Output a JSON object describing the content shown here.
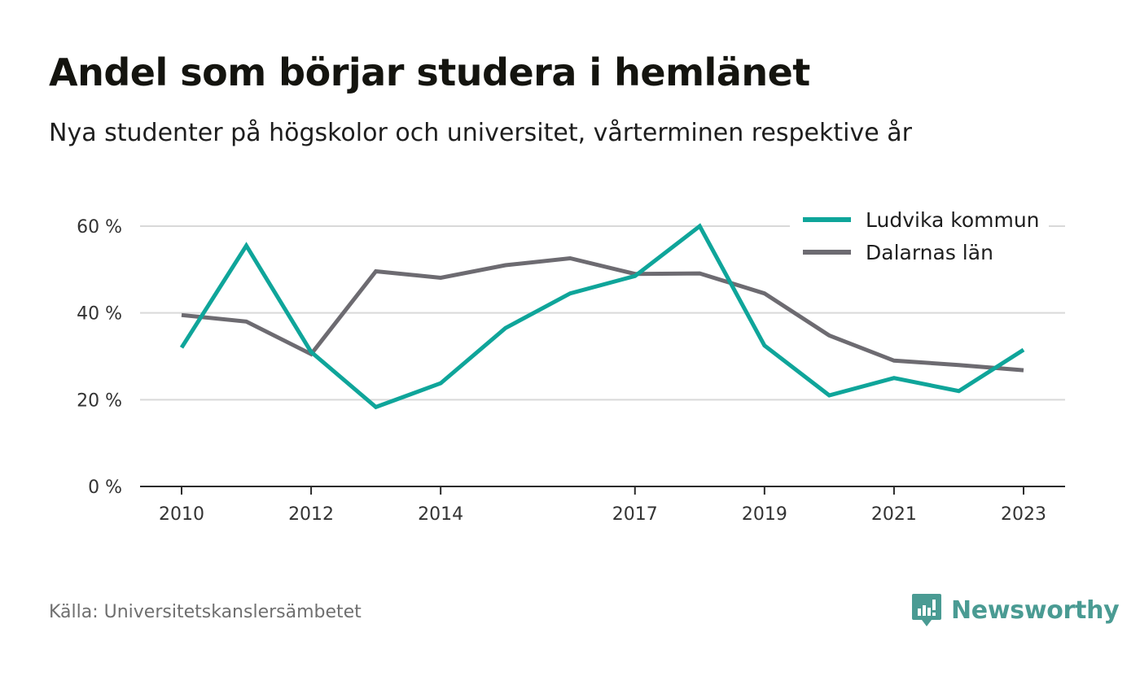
{
  "title": "Andel som börjar studera i hemlänet",
  "subtitle": "Nya studenter på högskolor och universitet, vårterminen respektive år",
  "source": "Källa: Universitetskanslersämbetet",
  "brand": {
    "name": "Newsworthy",
    "color": "#4a9b93",
    "icon": "newsworthy-logo-icon"
  },
  "chart_data": {
    "type": "line",
    "x": [
      2010,
      2011,
      2012,
      2013,
      2014,
      2015,
      2016,
      2017,
      2018,
      2019,
      2020,
      2021,
      2022,
      2023
    ],
    "x_tick_labels": [
      "2010",
      "2012",
      "2014",
      "2017",
      "2019",
      "2021",
      "2023"
    ],
    "y_tick_labels": [
      "0 %",
      "20 %",
      "40 %",
      "60 %"
    ],
    "y_ticks": [
      0,
      20,
      40,
      60
    ],
    "ylim": [
      0,
      60
    ],
    "grid": true,
    "legend_position": "top-right",
    "series": [
      {
        "name": "Ludvika kommun",
        "color": "#0fa59a",
        "values": [
          32,
          55.5,
          31,
          18.3,
          23.8,
          36.5,
          44.5,
          48.5,
          60,
          32.5,
          21,
          25,
          22,
          31.5
        ]
      },
      {
        "name": "Dalarnas län",
        "color": "#6d6b71",
        "values": [
          39.5,
          38,
          30.5,
          49.6,
          48.1,
          51,
          52.6,
          49,
          49.1,
          44.5,
          34.8,
          29,
          28,
          26.8
        ]
      }
    ]
  }
}
